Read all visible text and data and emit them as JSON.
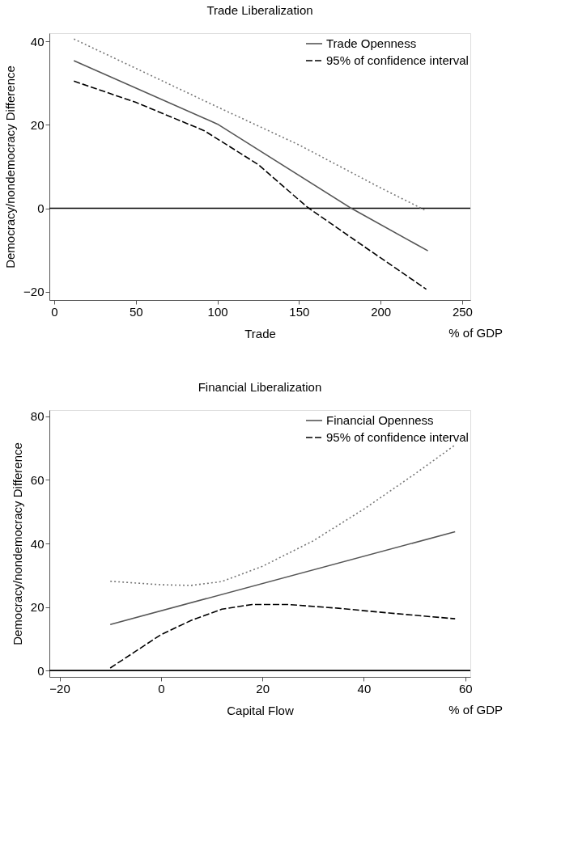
{
  "chart_data": [
    {
      "type": "line",
      "title": "Trade Liberalization",
      "xlabel": "Trade",
      "ylabel": "Democracy/nondemocracy Difference",
      "annotations": [
        "% of GDP"
      ],
      "xlim": [
        -3,
        255
      ],
      "ylim": [
        -22,
        42
      ],
      "xticks": [
        0,
        50,
        100,
        150,
        200,
        250
      ],
      "yticks": [
        -20,
        0,
        20,
        40
      ],
      "legend": "top right",
      "grid": false,
      "ref_lines": [
        {
          "axis": "y",
          "value": 0,
          "color": "#000000",
          "line_style": "solid"
        }
      ],
      "series": [
        {
          "name": "Trade Openness",
          "color": "#555555",
          "line_style": "solid",
          "x": [
            12,
            100,
            182,
            229
          ],
          "values": [
            35.4,
            20.2,
            0,
            -10.2
          ]
        },
        {
          "color": "#777777",
          "line_style": "dotted",
          "x": [
            12,
            100,
            150,
            200,
            228
          ],
          "values": [
            40.6,
            24.3,
            15.2,
            4.9,
            -0.6
          ]
        },
        {
          "name": "95% of confidence interval",
          "color": "#000000",
          "line_style": "dashed",
          "x": [
            12,
            50,
            92,
            125,
            155,
            190,
            228
          ],
          "values": [
            30.5,
            25.4,
            18.6,
            10.5,
            0.3,
            -9.2,
            -19.4
          ]
        }
      ]
    },
    {
      "type": "line",
      "title": "Financial Liberalization",
      "xlabel": "Capital Flow",
      "ylabel": "Democracy/nondemocracy Difference",
      "annotations": [
        "% of GDP"
      ],
      "xlim": [
        -22,
        61
      ],
      "ylim": [
        -2,
        82
      ],
      "xticks": [
        -20,
        0,
        20,
        40,
        60
      ],
      "yticks": [
        0,
        20,
        40,
        60,
        80
      ],
      "legend": "top right",
      "grid": false,
      "ref_lines": [
        {
          "axis": "y",
          "value": 0,
          "color": "#000000",
          "line_style": "solid"
        }
      ],
      "series": [
        {
          "name": "Financial Openness",
          "color": "#555555",
          "line_style": "solid",
          "x": [
            -10,
            58
          ],
          "values": [
            14.5,
            43.7
          ]
        },
        {
          "color": "#777777",
          "line_style": "dotted",
          "x": [
            -10,
            0,
            6,
            12,
            20,
            30,
            40,
            50,
            58
          ],
          "values": [
            28.1,
            27.0,
            26.8,
            28.0,
            32.8,
            40.8,
            50.8,
            61.8,
            71
          ]
        },
        {
          "name": "95% of confidence interval",
          "color": "#000000",
          "line_style": "dashed",
          "x": [
            -10,
            0,
            6,
            12,
            18,
            25,
            35,
            45,
            58
          ],
          "values": [
            0.8,
            11.3,
            15.8,
            19.3,
            20.8,
            20.8,
            19.6,
            18.1,
            16.3
          ]
        }
      ]
    }
  ]
}
